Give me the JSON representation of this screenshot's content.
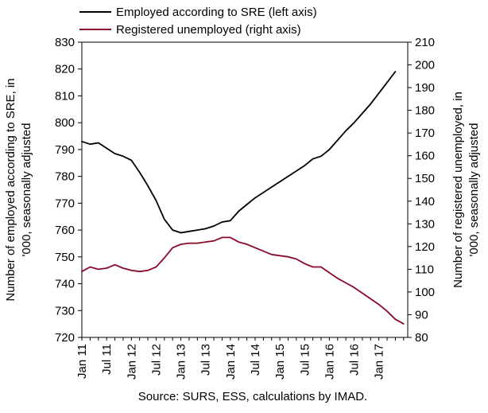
{
  "chart_data": {
    "type": "line",
    "legend_position": "top",
    "grid": false,
    "source_note": "Source: SURS, ESS, calculations by IMAD.",
    "ylabel_left": "Number of employed according to SRE, in '000, seasonally adjusted",
    "ylabel_right": "Number of registered unemployed, in '000, seasonally adjusted",
    "ylim_left": [
      720,
      830
    ],
    "ylim_right": [
      80,
      210
    ],
    "yticks_left": [
      "720",
      "730",
      "740",
      "750",
      "760",
      "770",
      "780",
      "790",
      "800",
      "810",
      "820",
      "830"
    ],
    "yticks_right": [
      "80",
      "90",
      "100",
      "110",
      "120",
      "130",
      "140",
      "150",
      "160",
      "170",
      "180",
      "190",
      "200",
      "210"
    ],
    "x_tick_labels": [
      "Jan 11",
      "Jul 11",
      "Jan 12",
      "Jul 12",
      "Jan 13",
      "Jul 13",
      "Jan 14",
      "Jul 14",
      "Jan 15",
      "Jul 15",
      "Jan 16",
      "Jul 16",
      "Jan 17"
    ],
    "x_tick_months": [
      0,
      6,
      12,
      18,
      24,
      30,
      36,
      42,
      48,
      54,
      60,
      66,
      72
    ],
    "x_range_months": [
      0,
      79
    ],
    "colors": {
      "employed": "#000000",
      "unemployed": "#8b0a2a"
    },
    "series": [
      {
        "name": "Employed according to SRE (left axis)",
        "axis": "left",
        "x_month_index": [
          0,
          2,
          4,
          6,
          8,
          10,
          12,
          14,
          16,
          18,
          20,
          22,
          24,
          26,
          28,
          30,
          32,
          34,
          36,
          38,
          40,
          42,
          44,
          46,
          48,
          50,
          52,
          54,
          56,
          58,
          60,
          62,
          64,
          66,
          68,
          70,
          72,
          74,
          76
        ],
        "values": [
          793,
          792,
          792.5,
          790.5,
          788.5,
          787.5,
          786,
          781.5,
          776.5,
          771,
          764,
          760,
          759,
          759.5,
          760,
          760.5,
          761.5,
          763,
          763.5,
          767,
          769.5,
          772,
          774,
          776,
          778,
          780,
          782,
          784,
          786.5,
          787.5,
          790,
          793.5,
          797,
          800,
          803.5,
          807,
          811,
          815,
          819
        ]
      },
      {
        "name": "Registered unemployed (right axis)",
        "axis": "right",
        "x_month_index": [
          0,
          2,
          4,
          6,
          8,
          10,
          12,
          14,
          16,
          18,
          20,
          22,
          24,
          26,
          28,
          30,
          32,
          34,
          36,
          38,
          40,
          42,
          44,
          46,
          48,
          50,
          52,
          54,
          56,
          58,
          60,
          62,
          64,
          66,
          68,
          70,
          72,
          74,
          76,
          78
        ],
        "values": [
          109,
          111,
          110,
          110.5,
          112,
          110.5,
          109.5,
          109,
          109.5,
          111,
          115,
          119.5,
          121,
          121.5,
          121.5,
          122,
          122.5,
          124,
          124,
          122,
          121,
          119.5,
          118,
          116.5,
          116,
          115.5,
          114.5,
          112.5,
          111,
          111,
          108.5,
          106,
          104,
          102,
          99.5,
          97,
          94.5,
          91.5,
          88,
          86
        ]
      }
    ]
  }
}
